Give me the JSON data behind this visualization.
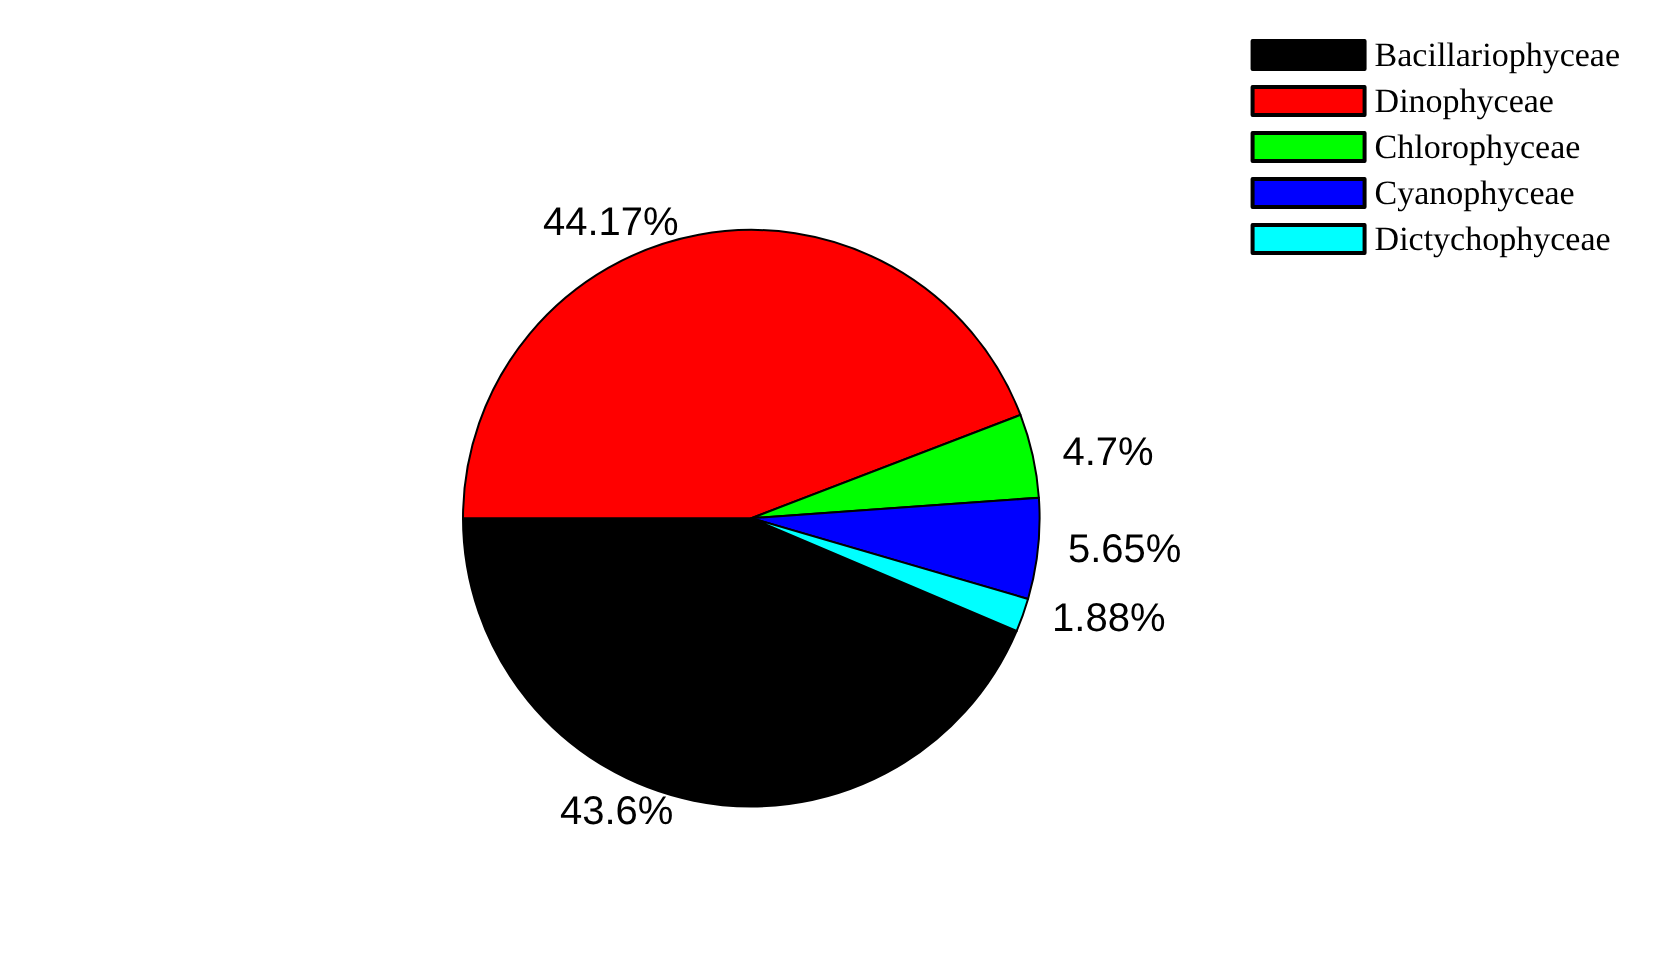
{
  "chart_data": {
    "type": "pie",
    "categories": [
      "Bacillariophyceae",
      "Dinophyceae",
      "Chlorophyceae",
      "Cyanophyceae",
      "Dictychophyceae"
    ],
    "values": [
      43.6,
      44.17,
      4.7,
      5.65,
      1.88
    ],
    "colors": [
      "#000000",
      "#ff0000",
      "#00ff00",
      "#0000ff",
      "#00ffff"
    ],
    "value_labels": [
      "43.6%",
      "44.17%",
      "4.7%",
      "5.65%",
      "1.88%"
    ],
    "legend": "top right"
  }
}
